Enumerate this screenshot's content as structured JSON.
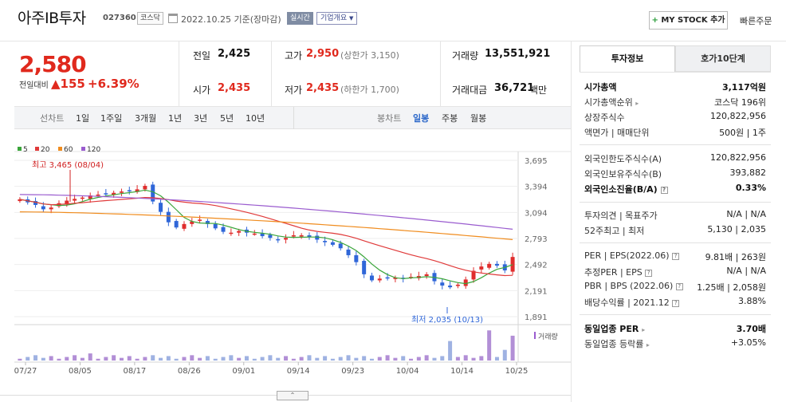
{
  "header": {
    "company_name": "아주IB투자",
    "code": "027360",
    "market_badge": "코스닥",
    "as_of": "2022.10.25 기준(장마감)",
    "realtime_label": "실시간",
    "overview_label": "기업개요",
    "mystock_label": "MY STOCK 추가",
    "quick_order_label": "빠른주문"
  },
  "price": {
    "current": "2,580",
    "change_label": "전일대비",
    "change_amount": "▲155",
    "change_pct": "+6.39%"
  },
  "quote": {
    "prev_close_label": "전일",
    "prev_close": "2,425",
    "open_label": "시가",
    "open": "2,435",
    "high_label": "고가",
    "high": "2,950",
    "upper_limit": "(상한가 3,150)",
    "low_label": "저가",
    "low": "2,435",
    "lower_limit": "(하한가 1,700)",
    "volume_label": "거래량",
    "volume": "13,551,921",
    "amount_label": "거래대금",
    "amount": "36,721",
    "amount_unit": "백만"
  },
  "toolbar": {
    "line_label": "선차트",
    "periods": [
      "1일",
      "1주일",
      "3개월",
      "1년",
      "3년",
      "5년",
      "10년"
    ],
    "candle_label": "봉차트",
    "candle_modes": [
      "일봉",
      "주봉",
      "월봉"
    ],
    "active_candle": "일봉"
  },
  "chart_data": {
    "type": "candlestick",
    "legend": [
      {
        "name": "5",
        "color": "#3aa53a"
      },
      {
        "name": "20",
        "color": "#e03a3a"
      },
      {
        "name": "60",
        "color": "#f08c1e"
      },
      {
        "name": "120",
        "color": "#9a5ccf"
      }
    ],
    "y_ticks": [
      "3,695",
      "3,394",
      "3,094",
      "2,793",
      "2,492",
      "2,191",
      "1,891"
    ],
    "ylim": [
      1891,
      3695
    ],
    "x_ticks": [
      "07/27",
      "08/05",
      "08/17",
      "08/26",
      "09/01",
      "09/14",
      "09/23",
      "10/04",
      "10/14",
      "10/25"
    ],
    "high_annotation": "최고 3,465 (08/04)",
    "low_annotation": "최저 2,035 (10/13)",
    "volume_label": "거래량",
    "closes": [
      3245,
      3210,
      3180,
      3130,
      3150,
      3200,
      3230,
      3250,
      3265,
      3290,
      3300,
      3310,
      3320,
      3335,
      3345,
      3360,
      3400,
      3220,
      3100,
      2980,
      2920,
      2960,
      2990,
      3010,
      2960,
      2910,
      2870,
      2860,
      2880,
      2860,
      2850,
      2820,
      2800,
      2780,
      2800,
      2830,
      2830,
      2810,
      2780,
      2750,
      2720,
      2680,
      2600,
      2520,
      2380,
      2310,
      2330,
      2340,
      2340,
      2330,
      2350,
      2360,
      2380,
      2300,
      2250,
      2230,
      2260,
      2320,
      2420,
      2470,
      2500,
      2480,
      2425,
      2580
    ]
  },
  "panel": {
    "tab_info": "투자정보",
    "tab_orderbook": "호가10단계",
    "market_cap_label": "시가총액",
    "market_cap": "3,117억원",
    "market_cap_rank_label": "시가총액순위",
    "market_cap_rank": "코스닥 196위",
    "shares_label": "상장주식수",
    "shares": "120,822,956",
    "face_value_label": "액면가 | 매매단위",
    "face_value": "500원 | 1주",
    "foreign_limit_label": "외국인한도주식수(A)",
    "foreign_limit": "120,822,956",
    "foreign_hold_label": "외국인보유주식수(B)",
    "foreign_hold": "393,882",
    "foreign_ratio_label": "외국인소진율(B/A)",
    "foreign_ratio": "0.33%",
    "opinion_label": "투자의견 | 목표주가",
    "opinion": "N/A | N/A",
    "week52_label": "52주최고 | 최저",
    "week52": "5,130 | 2,035",
    "per_label": "PER | EPS(2022.06)",
    "per": "9.81배 | 263원",
    "est_per_label": "추정PER | EPS",
    "est_per": "N/A | N/A",
    "pbr_label": "PBR | BPS (2022.06)",
    "pbr": "1.25배 | 2,058원",
    "dividend_label": "배당수익률 | 2021.12",
    "dividend": "3.88%",
    "industry_per_label": "동일업종 PER",
    "industry_per": "3.70배",
    "industry_change_label": "동일업종 등락률",
    "industry_change": "+3.05%"
  }
}
